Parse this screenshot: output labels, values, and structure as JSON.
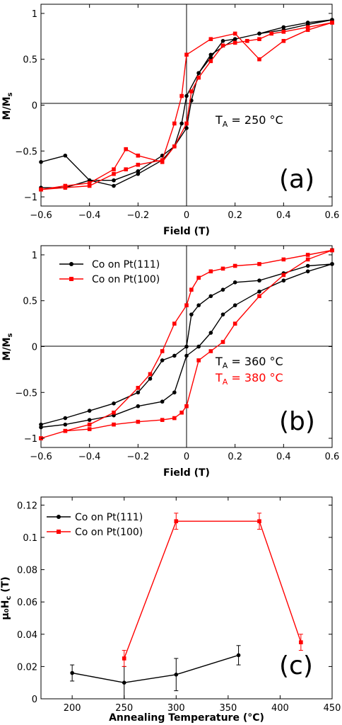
{
  "colors": {
    "series_111": "#000000",
    "series_100": "#ff0000"
  },
  "chart_data": [
    {
      "type": "line",
      "panel_label": "(a)",
      "annotation": {
        "text": "T",
        "sub": "A",
        "rest": " = 250 °C",
        "color": "#000000"
      },
      "xlabel": "Field (T)",
      "ylabel": "M/M",
      "ylabel_sub": "s",
      "xlim": [
        -0.6,
        0.6
      ],
      "ylim": [
        -1.1,
        1.1
      ],
      "xticks": [
        -0.6,
        -0.4,
        -0.2,
        0,
        0.2,
        0.4,
        0.6
      ],
      "xtick_labels": [
        "−0.6",
        "−0.4",
        "−0.2",
        "0",
        "0.2",
        "0.4",
        "0.6"
      ],
      "yticks": [
        -1,
        -0.5,
        0,
        0.5,
        1
      ],
      "ytick_labels": [
        "−1",
        "−0.5",
        "0",
        "0.5",
        "1"
      ],
      "series": [
        {
          "color": "#000000",
          "marker": "circle",
          "x": [
            -0.6,
            -0.5,
            -0.4,
            -0.3,
            -0.2,
            -0.1,
            -0.05,
            0.0,
            0.02,
            0.05,
            0.1,
            0.15,
            0.2,
            0.3,
            0.4,
            0.5,
            0.6,
            0.6,
            0.5,
            0.4,
            0.3,
            0.2,
            0.1,
            0.05,
            0.0,
            -0.02,
            -0.05,
            -0.1,
            -0.2,
            -0.3,
            -0.4,
            -0.5,
            -0.6
          ],
          "y": [
            -0.9,
            -0.9,
            -0.82,
            -0.82,
            -0.72,
            -0.55,
            -0.45,
            -0.25,
            0.05,
            0.35,
            0.52,
            0.7,
            0.72,
            0.78,
            0.85,
            0.9,
            0.93,
            0.93,
            0.88,
            0.82,
            0.78,
            0.72,
            0.55,
            0.35,
            0.1,
            -0.2,
            -0.45,
            -0.6,
            -0.75,
            -0.88,
            -0.82,
            -0.55,
            -0.62
          ]
        },
        {
          "color": "#ff0000",
          "marker": "square",
          "x": [
            -0.6,
            -0.5,
            -0.4,
            -0.3,
            -0.25,
            -0.2,
            -0.1,
            -0.05,
            0.0,
            0.02,
            0.05,
            0.1,
            0.15,
            0.2,
            0.25,
            0.3,
            0.35,
            0.4,
            0.5,
            0.6,
            0.6,
            0.5,
            0.4,
            0.3,
            0.2,
            0.1,
            0.0,
            -0.02,
            -0.05,
            -0.1,
            -0.2,
            -0.25,
            -0.3,
            -0.4,
            -0.5,
            -0.6
          ],
          "y": [
            -0.92,
            -0.88,
            -0.85,
            -0.7,
            -0.48,
            -0.55,
            -0.62,
            -0.45,
            -0.2,
            0.15,
            0.3,
            0.48,
            0.65,
            0.68,
            0.7,
            0.72,
            0.78,
            0.8,
            0.85,
            0.9,
            0.9,
            0.82,
            0.7,
            0.5,
            0.78,
            0.72,
            0.55,
            0.1,
            -0.2,
            -0.6,
            -0.65,
            -0.7,
            -0.75,
            -0.88,
            -0.9,
            -0.92
          ]
        }
      ]
    },
    {
      "type": "line",
      "panel_label": "(b)",
      "annotations": [
        {
          "text": "T",
          "sub": "A",
          "rest": " = 360 °C",
          "color": "#000000"
        },
        {
          "text": "T",
          "sub": "A",
          "rest": " = 380 °C",
          "color": "#ff0000"
        }
      ],
      "xlabel": "Field (T)",
      "ylabel": "M/M",
      "ylabel_sub": "s",
      "xlim": [
        -0.6,
        0.6
      ],
      "ylim": [
        -1.1,
        1.1
      ],
      "xticks": [
        -0.6,
        -0.4,
        -0.2,
        0,
        0.2,
        0.4,
        0.6
      ],
      "xtick_labels": [
        "−0.6",
        "−0.4",
        "−0.2",
        "0",
        "0.2",
        "0.4",
        "0.6"
      ],
      "yticks": [
        -1,
        -0.5,
        0,
        0.5,
        1
      ],
      "ytick_labels": [
        "−1",
        "−0.5",
        "0",
        "0.5",
        "1"
      ],
      "legend": [
        "Co on Pt(111)",
        "Co on Pt(100)"
      ],
      "series": [
        {
          "name": "Co on Pt(111)",
          "color": "#000000",
          "marker": "circle",
          "x": [
            -0.6,
            -0.5,
            -0.4,
            -0.3,
            -0.2,
            -0.15,
            -0.1,
            -0.05,
            0.0,
            0.02,
            0.05,
            0.1,
            0.15,
            0.2,
            0.3,
            0.4,
            0.5,
            0.6,
            0.6,
            0.5,
            0.4,
            0.3,
            0.2,
            0.15,
            0.1,
            0.05,
            0.0,
            -0.05,
            -0.1,
            -0.2,
            -0.3,
            -0.4,
            -0.5,
            -0.6
          ],
          "y": [
            -0.85,
            -0.78,
            -0.7,
            -0.62,
            -0.5,
            -0.35,
            -0.15,
            -0.1,
            0.0,
            0.35,
            0.45,
            0.55,
            0.62,
            0.7,
            0.72,
            0.8,
            0.88,
            0.9,
            0.9,
            0.82,
            0.72,
            0.6,
            0.45,
            0.35,
            0.15,
            0.0,
            -0.1,
            -0.5,
            -0.6,
            -0.65,
            -0.75,
            -0.8,
            -0.85,
            -0.88
          ]
        },
        {
          "name": "Co on Pt(100)",
          "color": "#ff0000",
          "marker": "square",
          "x": [
            -0.6,
            -0.5,
            -0.4,
            -0.3,
            -0.2,
            -0.15,
            -0.1,
            -0.05,
            0.0,
            0.02,
            0.05,
            0.1,
            0.15,
            0.2,
            0.3,
            0.4,
            0.5,
            0.6,
            0.6,
            0.5,
            0.4,
            0.3,
            0.2,
            0.15,
            0.1,
            0.05,
            0.0,
            -0.02,
            -0.05,
            -0.1,
            -0.2,
            -0.3,
            -0.4,
            -0.5,
            -0.6
          ],
          "y": [
            -1.0,
            -0.92,
            -0.85,
            -0.72,
            -0.45,
            -0.3,
            -0.05,
            0.25,
            0.45,
            0.62,
            0.75,
            0.82,
            0.85,
            0.88,
            0.9,
            0.95,
            1.0,
            1.05,
            1.05,
            0.95,
            0.78,
            0.55,
            0.25,
            0.05,
            -0.05,
            -0.15,
            -0.65,
            -0.72,
            -0.78,
            -0.8,
            -0.82,
            -0.85,
            -0.9,
            -0.92,
            -1.0
          ]
        }
      ]
    },
    {
      "type": "line",
      "panel_label": "(c)",
      "xlabel": "Annealing Temperature (°C)",
      "ylabel": "μ₀H",
      "ylabel_sub": "c",
      "ylabel_tail": " (T)",
      "xlim": [
        170,
        450
      ],
      "ylim": [
        0,
        0.125
      ],
      "xticks": [
        200,
        250,
        300,
        350,
        400,
        450
      ],
      "xtick_labels": [
        "200",
        "250",
        "300",
        "350",
        "400",
        "450"
      ],
      "yticks": [
        0,
        0.02,
        0.04,
        0.06,
        0.08,
        0.1,
        0.12
      ],
      "ytick_labels": [
        "0",
        "0.02",
        "0.04",
        "0.06",
        "0.08",
        "0.1",
        "0.12"
      ],
      "legend": [
        "Co on Pt(111)",
        "Co on Pt(100)"
      ],
      "series": [
        {
          "name": "Co on Pt(111)",
          "color": "#000000",
          "marker": "circle",
          "x": [
            200,
            250,
            300,
            360
          ],
          "y": [
            0.016,
            0.01,
            0.015,
            0.027
          ],
          "err": [
            0.005,
            0.01,
            0.01,
            0.006
          ]
        },
        {
          "name": "Co on Pt(100)",
          "color": "#ff0000",
          "marker": "square",
          "x": [
            250,
            300,
            380,
            420
          ],
          "y": [
            0.025,
            0.11,
            0.11,
            0.035
          ],
          "err": [
            0.005,
            0.005,
            0.005,
            0.005
          ]
        }
      ]
    }
  ]
}
